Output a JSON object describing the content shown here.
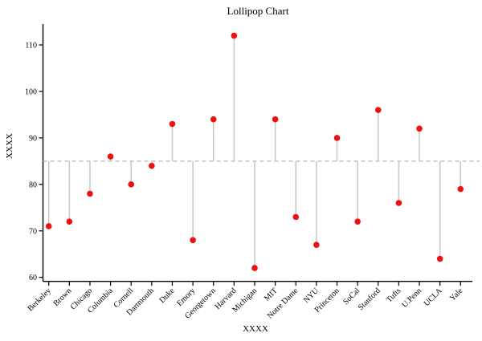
{
  "chart_data": {
    "type": "lollipop",
    "title": "Lollipop Chart",
    "xlabel": "XXXX",
    "ylabel": "XXXX",
    "categories": [
      "Berkeley",
      "Brown",
      "Chicago",
      "Columbia",
      "Cornell",
      "Dartmouth",
      "Duke",
      "Emory",
      "Georgetown",
      "Harvard",
      "Michigan",
      "MIT",
      "Notre Dame",
      "NYU",
      "Princeton",
      "SoCal",
      "Stanford",
      "Tufts",
      "U.Penn",
      "UCLA",
      "Yale"
    ],
    "values": [
      71,
      72,
      78,
      86,
      80,
      84,
      93,
      68,
      94,
      112,
      62,
      94,
      73,
      67,
      90,
      72,
      96,
      76,
      92,
      64,
      79
    ],
    "baseline": 85,
    "yticks": [
      60,
      70,
      80,
      90,
      100,
      110
    ],
    "ylim": [
      59,
      114.5
    ],
    "grid": false,
    "legend": null,
    "colors": {
      "dot": "#ee1111",
      "stem": "#c9c9c9",
      "baseline": "#b3b3b3",
      "axis": "#000000",
      "background": "#ffffff"
    }
  }
}
